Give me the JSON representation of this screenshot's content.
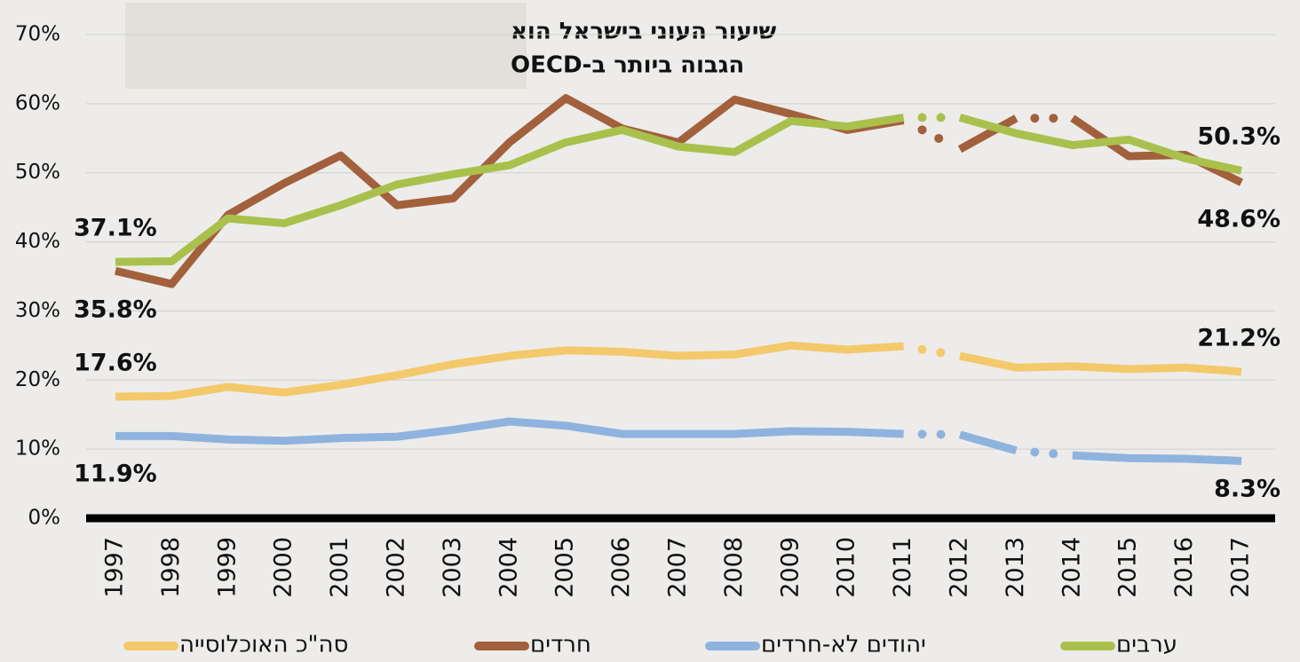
{
  "chart_data": {
    "type": "line",
    "title": [
      "שיעור העוני בישראל הוא",
      "הגבוה ביותר ב-OECD"
    ],
    "categories": [
      "1997",
      "1998",
      "1999",
      "2000",
      "2001",
      "2002",
      "2003",
      "2004",
      "2005",
      "2006",
      "2007",
      "2008",
      "2009",
      "2010",
      "2011",
      "2012",
      "2013",
      "2014",
      "2015",
      "2016",
      "2017"
    ],
    "series": [
      {
        "name": "סה\"כ האוכלוסייה",
        "color": "#f4c96b",
        "label_color": "#c4941e",
        "start_label": "17.6%",
        "end_label": "21.2%",
        "dotted_segments": [
          14
        ],
        "values": [
          17.6,
          17.7,
          19.0,
          18.2,
          19.3,
          20.7,
          22.3,
          23.5,
          24.3,
          24.1,
          23.5,
          23.7,
          25.0,
          24.4,
          24.9,
          23.5,
          21.8,
          22.0,
          21.6,
          21.8,
          21.2
        ]
      },
      {
        "name": "חרדים",
        "color": "#a2603c",
        "label_color": "#8f5336",
        "start_label": "35.8%",
        "end_label": "48.6%",
        "dotted_segments": [
          14,
          16
        ],
        "values": [
          35.8,
          33.9,
          43.9,
          48.5,
          52.5,
          45.3,
          46.3,
          54.4,
          60.8,
          56.4,
          54.4,
          60.6,
          58.5,
          56.2,
          57.6,
          53.4,
          57.9,
          57.9,
          52.4,
          52.6,
          48.6
        ]
      },
      {
        "name": "יהודים לא-חרדים",
        "color": "#8fb3df",
        "label_color": "#4a7fc0",
        "start_label": "11.9%",
        "end_label": "8.3%",
        "dotted_segments": [
          14,
          16
        ],
        "values": [
          11.9,
          11.9,
          11.4,
          11.2,
          11.6,
          11.8,
          12.8,
          14.0,
          13.4,
          12.2,
          12.2,
          12.2,
          12.6,
          12.5,
          12.2,
          12.1,
          9.8,
          9.1,
          8.7,
          8.6,
          8.3
        ]
      },
      {
        "name": "ערבים",
        "color": "#a9c14c",
        "label_color": "#7f8c36",
        "start_label": "37.1%",
        "end_label": "50.3%",
        "dotted_segments": [
          14
        ],
        "values": [
          37.1,
          37.2,
          43.4,
          42.7,
          45.3,
          48.3,
          49.8,
          51.1,
          54.4,
          56.2,
          53.8,
          53.0,
          57.5,
          56.7,
          58.0,
          58.0,
          55.7,
          54.0,
          54.8,
          52.1,
          50.3
        ]
      }
    ],
    "ylim": [
      0,
      70
    ],
    "yticks": [
      {
        "value": 0,
        "label": "0%"
      },
      {
        "value": 10,
        "label": "10%"
      },
      {
        "value": 20,
        "label": "20%"
      },
      {
        "value": 30,
        "label": "30%"
      },
      {
        "value": 40,
        "label": "40%"
      },
      {
        "value": 50,
        "label": "50%"
      },
      {
        "value": 60,
        "label": "60%"
      },
      {
        "value": 70,
        "label": "70%"
      }
    ],
    "grid": true
  }
}
